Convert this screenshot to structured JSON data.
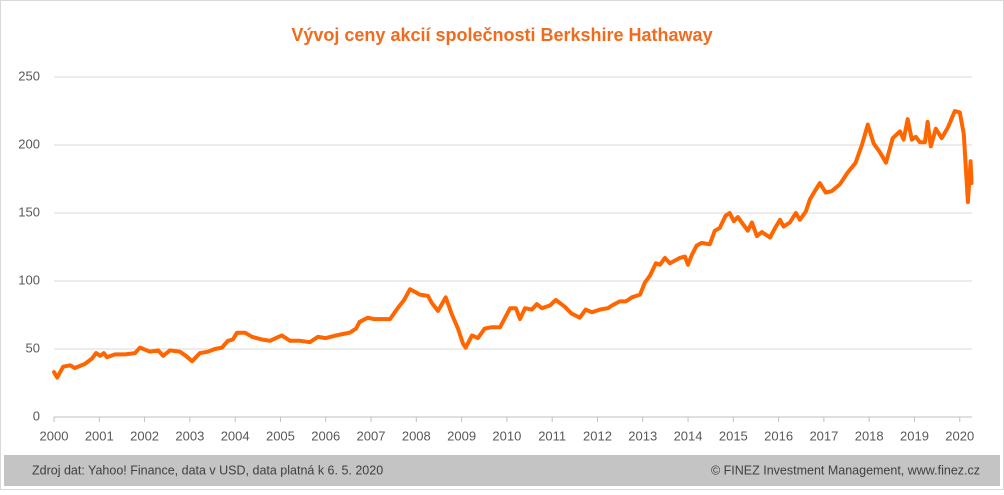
{
  "chart_data": {
    "type": "line",
    "title": "Vývoj ceny akcií společnosti Berkshire Hathaway",
    "footer_left": "Zdroj dat: Yahoo! Finance, data v USD, data platná k 6. 5. 2020",
    "footer_right": "© FINEZ Investment Management, www.finez.cz",
    "x": [
      2000.0,
      2000.07,
      2000.2,
      2000.35,
      2000.46,
      2000.68,
      2000.84,
      2000.93,
      2001.02,
      2001.1,
      2001.17,
      2001.35,
      2001.57,
      2001.79,
      2001.9,
      2002.12,
      2002.3,
      2002.41,
      2002.56,
      2002.78,
      2002.91,
      2003.05,
      2003.22,
      2003.4,
      2003.55,
      2003.71,
      2003.84,
      2003.95,
      2004.04,
      2004.22,
      2004.37,
      2004.59,
      2004.77,
      2004.9,
      2005.03,
      2005.21,
      2005.43,
      2005.65,
      2005.83,
      2006.0,
      2006.23,
      2006.38,
      2006.53,
      2006.67,
      2006.75,
      2006.93,
      2007.06,
      2007.2,
      2007.42,
      2007.59,
      2007.73,
      2007.86,
      2007.97,
      2008.08,
      2008.26,
      2008.34,
      2008.48,
      2008.65,
      2008.79,
      2008.92,
      2009.03,
      2009.09,
      2009.23,
      2009.36,
      2009.51,
      2009.67,
      2009.85,
      2009.96,
      2010.07,
      2010.2,
      2010.29,
      2010.4,
      2010.55,
      2010.66,
      2010.77,
      2010.95,
      2011.08,
      2011.28,
      2011.43,
      2011.61,
      2011.74,
      2011.88,
      2012.05,
      2012.23,
      2012.32,
      2012.49,
      2012.63,
      2012.76,
      2012.94,
      2013.05,
      2013.16,
      2013.29,
      2013.38,
      2013.49,
      2013.6,
      2013.82,
      2013.93,
      2014.0,
      2014.08,
      2014.19,
      2014.3,
      2014.48,
      2014.59,
      2014.7,
      2014.83,
      2014.92,
      2015.01,
      2015.1,
      2015.23,
      2015.32,
      2015.41,
      2015.52,
      2015.63,
      2015.81,
      2015.94,
      2016.03,
      2016.11,
      2016.25,
      2016.38,
      2016.47,
      2016.6,
      2016.69,
      2016.8,
      2016.91,
      2017.04,
      2017.17,
      2017.35,
      2017.53,
      2017.7,
      2017.84,
      2017.97,
      2018.1,
      2018.23,
      2018.37,
      2018.52,
      2018.68,
      2018.76,
      2018.85,
      2018.94,
      2019.03,
      2019.12,
      2019.23,
      2019.29,
      2019.36,
      2019.47,
      2019.6,
      2019.74,
      2019.89,
      2020.0,
      2020.09,
      2020.18,
      2020.24,
      2020.26
    ],
    "series": [
      {
        "color": "#ff6600",
        "values": [
          33,
          29,
          37,
          38,
          36,
          39,
          43,
          47,
          45,
          47,
          44,
          46,
          46,
          47,
          51,
          48,
          49,
          45,
          49,
          48,
          45,
          41,
          47,
          48,
          50,
          51,
          56,
          57,
          62,
          62,
          59,
          57,
          56,
          58,
          60,
          56,
          56,
          55,
          59,
          58,
          60,
          61,
          62,
          65,
          70,
          73,
          72,
          72,
          72,
          80,
          86,
          94,
          92,
          90,
          89,
          84,
          78,
          88,
          75,
          65,
          54,
          51,
          60,
          58,
          65,
          66,
          66,
          73,
          80,
          80,
          72,
          80,
          79,
          83,
          80,
          82,
          86,
          81,
          76,
          73,
          79,
          77,
          79,
          80,
          82,
          85,
          85,
          88,
          90,
          99,
          104,
          113,
          112,
          117,
          113,
          117,
          118,
          112,
          119,
          126,
          128,
          127,
          137,
          139,
          148,
          150,
          144,
          147,
          141,
          137,
          143,
          133,
          136,
          132,
          140,
          145,
          140,
          143,
          150,
          145,
          151,
          160,
          166,
          172,
          165,
          166,
          171,
          180,
          187,
          200,
          215,
          201,
          195,
          187,
          205,
          210,
          204,
          219,
          204,
          206,
          202,
          202,
          217,
          199,
          212,
          205,
          213,
          225,
          224,
          208,
          158,
          188,
          172
        ]
      }
    ],
    "xlim": [
      2000,
      2020.27
    ],
    "xticks": [
      2000,
      2001,
      2002,
      2003,
      2004,
      2005,
      2006,
      2007,
      2008,
      2009,
      2010,
      2011,
      2012,
      2013,
      2014,
      2015,
      2016,
      2017,
      2018,
      2019,
      2020
    ],
    "ylim": [
      0,
      250
    ],
    "yticks": [
      0,
      50,
      100,
      150,
      200,
      250
    ],
    "grid": true
  }
}
